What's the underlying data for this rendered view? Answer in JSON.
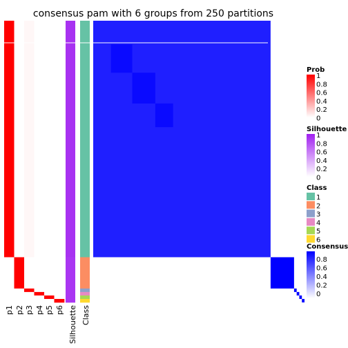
{
  "chart_data": {
    "type": "heatmap",
    "title": "consensus pam with 6 groups from 250 partitions",
    "annotation_columns": [
      "p1",
      "p2",
      "p3",
      "p4",
      "p5",
      "p6",
      "Silhouette",
      "Class"
    ],
    "groups": [
      {
        "class": 1,
        "rows": 68,
        "prob": [
          1,
          0,
          0.03,
          0,
          0,
          0
        ],
        "silhouette": 0.92
      },
      {
        "class": 2,
        "rows": 9,
        "prob": [
          0,
          1,
          0,
          0,
          0,
          0
        ],
        "silhouette": 0.9
      },
      {
        "class": 3,
        "rows": 1,
        "prob": [
          0,
          0,
          1,
          0,
          0,
          0
        ],
        "silhouette": 0.9
      },
      {
        "class": 4,
        "rows": 1,
        "prob": [
          0,
          0,
          0,
          1,
          0,
          0
        ],
        "silhouette": 0.9
      },
      {
        "class": 5,
        "rows": 1,
        "prob": [
          0,
          0,
          0,
          0,
          1,
          0
        ],
        "silhouette": 0.9
      },
      {
        "class": 6,
        "rows": 1,
        "prob": [
          0,
          0,
          0,
          0,
          0,
          1
        ],
        "silhouette": 0.9
      }
    ],
    "consensus_class1_level": 0.88,
    "legends": [
      {
        "title": "Prob",
        "ticks": [
          "1",
          "0.8",
          "0.6",
          "0.4",
          "0.2",
          "0"
        ],
        "colors": [
          "#ff0000",
          "#ffffff"
        ]
      },
      {
        "title": "Silhouette",
        "ticks": [
          "1",
          "0.8",
          "0.6",
          "0.4",
          "0.2",
          "0"
        ],
        "colors": [
          "#a020f0",
          "#ffffff"
        ]
      },
      {
        "title": "Class",
        "labels": [
          "1",
          "2",
          "3",
          "4",
          "5",
          "6"
        ],
        "colors": [
          "#66c2a5",
          "#fc8d62",
          "#8da0cb",
          "#e78ac3",
          "#a6d854",
          "#ffd92f"
        ]
      },
      {
        "title": "Consensus",
        "ticks": [
          "1",
          "0.8",
          "0.6",
          "0.4",
          "0.2",
          "0"
        ],
        "colors": [
          "#0000ff",
          "#ffffff"
        ]
      }
    ]
  }
}
